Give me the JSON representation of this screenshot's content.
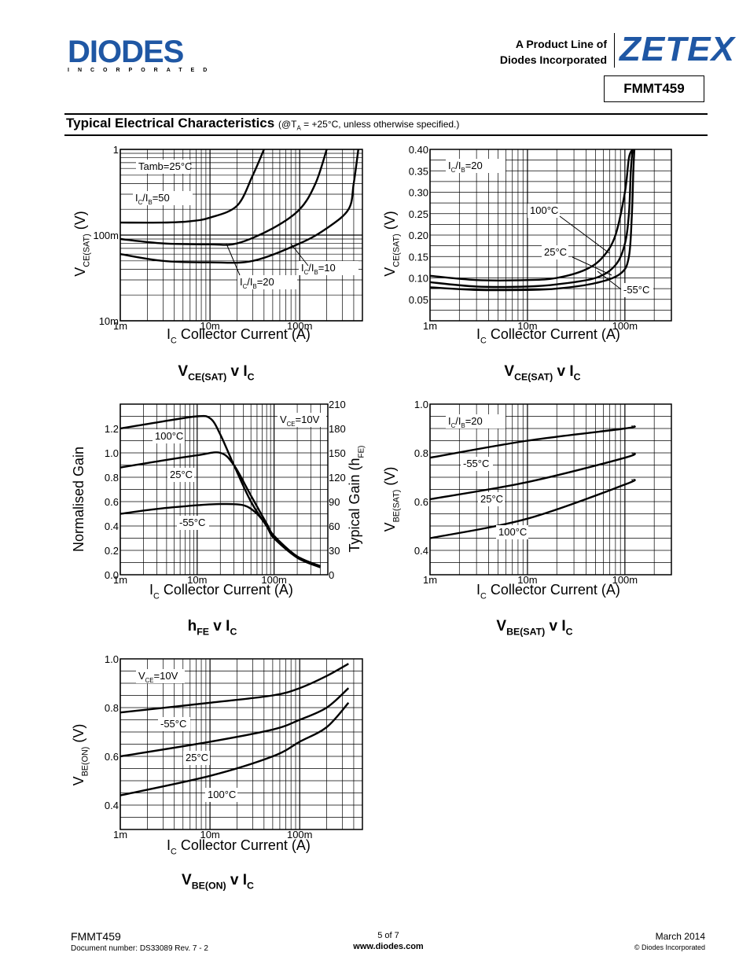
{
  "header": {
    "logo_diodes": "DIODES",
    "logo_diodes_sub": "INCORPORATED",
    "product_line_1": "A Product Line of",
    "product_line_2": "Diodes Incorporated",
    "logo_zetex": "ZETEX",
    "part_number": "FMMT459"
  },
  "section": {
    "title": "Typical Electrical Characteristics",
    "condition_prefix": "(@T",
    "condition_sub": "A",
    "condition_suffix": " = +25°C, unless otherwise specified.)"
  },
  "footer": {
    "part": "FMMT459",
    "doc_number": "Document number: DS33089 Rev. 7 - 2",
    "page": "5 of 7",
    "website": "www.diodes.com",
    "date": "March 2014",
    "copyright": "© Diodes Incorporated"
  },
  "chart_data": [
    {
      "type": "line",
      "caption": "V_CE(SAT) v I_C",
      "xlabel": "I_C Collector Current (A)",
      "ylabel": "V_CE(SAT) (V)",
      "x_scale": "log",
      "y_scale": "log",
      "xlim": [
        0.001,
        0.5
      ],
      "ylim": [
        0.01,
        1
      ],
      "x_ticks": [
        "1m",
        "10m",
        "100m"
      ],
      "y_ticks": [
        "10m",
        "100m",
        "1"
      ],
      "grid": true,
      "annotations": [
        "Tamb=25°C",
        "I_C/I_B=50",
        "I_C/I_B=20",
        "I_C/I_B=10"
      ],
      "series": [
        {
          "name": "I_C/I_B=50",
          "x": [
            0.001,
            0.003,
            0.006,
            0.01,
            0.02,
            0.03,
            0.04
          ],
          "y": [
            0.14,
            0.14,
            0.145,
            0.16,
            0.22,
            0.5,
            1.0
          ]
        },
        {
          "name": "I_C/I_B=20",
          "x": [
            0.001,
            0.003,
            0.01,
            0.02,
            0.05,
            0.1,
            0.15,
            0.2
          ],
          "y": [
            0.09,
            0.08,
            0.078,
            0.08,
            0.12,
            0.2,
            0.4,
            1.0
          ]
        },
        {
          "name": "I_C/I_B=10",
          "x": [
            0.001,
            0.003,
            0.01,
            0.03,
            0.1,
            0.2,
            0.35,
            0.4,
            0.45
          ],
          "y": [
            0.06,
            0.05,
            0.048,
            0.05,
            0.08,
            0.12,
            0.2,
            0.4,
            1.0
          ]
        }
      ]
    },
    {
      "type": "line",
      "caption": "V_CE(SAT) v I_C",
      "xlabel": "I_C Collector Current (A)",
      "ylabel": "V_CE(SAT) (V)",
      "x_scale": "log",
      "y_scale": "linear",
      "xlim": [
        0.001,
        0.3
      ],
      "ylim": [
        0,
        0.4
      ],
      "x_ticks": [
        "1m",
        "10m",
        "100m"
      ],
      "y_ticks": [
        "0.05",
        "0.10",
        "0.15",
        "0.20",
        "0.25",
        "0.30",
        "0.35",
        "0.40"
      ],
      "grid": true,
      "annotations": [
        "I_C/I_B=20"
      ],
      "series": [
        {
          "name": "100°C",
          "x": [
            0.001,
            0.003,
            0.01,
            0.02,
            0.04,
            0.06,
            0.08,
            0.1,
            0.11,
            0.12
          ],
          "y": [
            0.105,
            0.095,
            0.095,
            0.1,
            0.12,
            0.15,
            0.2,
            0.3,
            0.38,
            0.4
          ]
        },
        {
          "name": "25°C",
          "x": [
            0.001,
            0.003,
            0.01,
            0.02,
            0.05,
            0.08,
            0.1,
            0.11,
            0.115,
            0.12
          ],
          "y": [
            0.09,
            0.08,
            0.08,
            0.085,
            0.1,
            0.13,
            0.18,
            0.25,
            0.35,
            0.4
          ]
        },
        {
          "name": "-55°C",
          "x": [
            0.001,
            0.003,
            0.01,
            0.02,
            0.05,
            0.09,
            0.11,
            0.118,
            0.122,
            0.125
          ],
          "y": [
            0.078,
            0.072,
            0.072,
            0.075,
            0.088,
            0.11,
            0.15,
            0.25,
            0.35,
            0.4
          ]
        }
      ]
    },
    {
      "type": "line",
      "caption": "h_FE v I_C",
      "xlabel": "I_C Collector Current (A)",
      "ylabel": "Normalised Gain",
      "ylabel_right": "Typical Gain (h_FE)",
      "x_scale": "log",
      "y_scale": "linear",
      "xlim": [
        0.001,
        0.5
      ],
      "ylim": [
        0,
        1.4
      ],
      "ylim_right": [
        0,
        210
      ],
      "x_ticks": [
        "1m",
        "10m",
        "100m"
      ],
      "y_ticks": [
        "0.0",
        "0.2",
        "0.4",
        "0.6",
        "0.8",
        "1.0",
        "1.2"
      ],
      "y_ticks_right": [
        "0",
        "30",
        "60",
        "90",
        "120",
        "150",
        "180",
        "210"
      ],
      "grid": true,
      "annotations": [
        "V_CE=10V"
      ],
      "series": [
        {
          "name": "100°C",
          "x": [
            0.001,
            0.003,
            0.01,
            0.015,
            0.02,
            0.03,
            0.05,
            0.08,
            0.1,
            0.2,
            0.4
          ],
          "y": [
            1.2,
            1.25,
            1.3,
            1.28,
            1.15,
            0.9,
            0.6,
            0.4,
            0.3,
            0.15,
            0.07
          ]
        },
        {
          "name": "25°C",
          "x": [
            0.001,
            0.003,
            0.01,
            0.02,
            0.03,
            0.05,
            0.08,
            0.1,
            0.2,
            0.4
          ],
          "y": [
            0.88,
            0.93,
            0.98,
            1.0,
            0.9,
            0.65,
            0.42,
            0.32,
            0.15,
            0.07
          ]
        },
        {
          "name": "-55°C",
          "x": [
            0.001,
            0.003,
            0.01,
            0.02,
            0.04,
            0.06,
            0.08,
            0.1,
            0.2,
            0.4
          ],
          "y": [
            0.5,
            0.54,
            0.57,
            0.58,
            0.57,
            0.5,
            0.4,
            0.3,
            0.14,
            0.06
          ]
        }
      ]
    },
    {
      "type": "line",
      "caption": "V_BE(SAT) v I_C",
      "xlabel": "I_C Collector Current (A)",
      "ylabel": "V_BE(SAT) (V)",
      "x_scale": "log",
      "y_scale": "linear",
      "xlim": [
        0.001,
        0.3
      ],
      "ylim": [
        0.3,
        1.0
      ],
      "x_ticks": [
        "1m",
        "10m",
        "100m"
      ],
      "y_ticks": [
        "0.4",
        "0.6",
        "0.8",
        "1.0"
      ],
      "grid": true,
      "annotations": [
        "I_C/I_B=20"
      ],
      "series": [
        {
          "name": "-55°C",
          "x": [
            0.001,
            0.01,
            0.1,
            0.12
          ],
          "y": [
            0.78,
            0.85,
            0.9,
            0.91
          ]
        },
        {
          "name": "25°C",
          "x": [
            0.001,
            0.01,
            0.1,
            0.12
          ],
          "y": [
            0.61,
            0.68,
            0.78,
            0.8
          ]
        },
        {
          "name": "100°C",
          "x": [
            0.001,
            0.01,
            0.1,
            0.12
          ],
          "y": [
            0.45,
            0.53,
            0.67,
            0.69
          ]
        }
      ]
    },
    {
      "type": "line",
      "caption": "V_BE(ON) v I_C",
      "xlabel": "I_C Collector Current (A)",
      "ylabel": "V_BE(ON) (V)",
      "x_scale": "log",
      "y_scale": "linear",
      "xlim": [
        0.001,
        0.5
      ],
      "ylim": [
        0.3,
        1.0
      ],
      "x_ticks": [
        "1m",
        "10m",
        "100m"
      ],
      "y_ticks": [
        "0.4",
        "0.6",
        "0.8",
        "1.0"
      ],
      "grid": true,
      "annotations": [
        "V_CE=10V"
      ],
      "series": [
        {
          "name": "-55°C",
          "x": [
            0.001,
            0.01,
            0.05,
            0.1,
            0.2,
            0.35
          ],
          "y": [
            0.78,
            0.82,
            0.85,
            0.88,
            0.93,
            0.98
          ]
        },
        {
          "name": "25°C",
          "x": [
            0.001,
            0.01,
            0.05,
            0.1,
            0.2,
            0.35
          ],
          "y": [
            0.6,
            0.66,
            0.71,
            0.75,
            0.8,
            0.88
          ]
        },
        {
          "name": "100°C",
          "x": [
            0.001,
            0.01,
            0.05,
            0.1,
            0.2,
            0.35
          ],
          "y": [
            0.44,
            0.52,
            0.6,
            0.66,
            0.72,
            0.82
          ]
        }
      ]
    }
  ]
}
